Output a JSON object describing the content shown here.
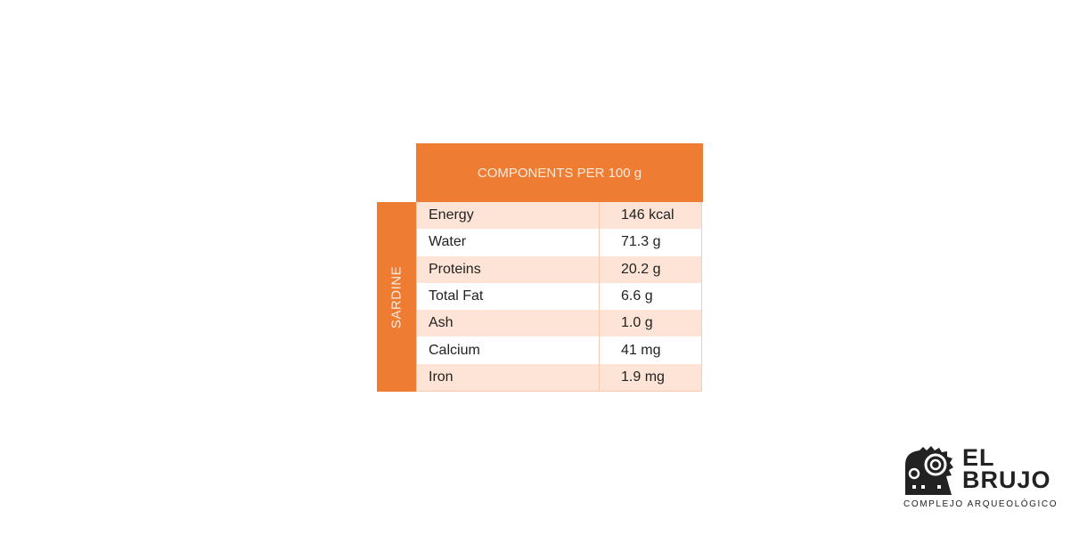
{
  "table": {
    "header": "COMPONENTS PER 100 g",
    "side_label": "SARDINE",
    "rows": [
      {
        "component": "Energy",
        "value": "146 kcal"
      },
      {
        "component": "Water",
        "value": "71.3 g"
      },
      {
        "component": "Proteins",
        "value": "20.2 g"
      },
      {
        "component": "Total Fat",
        "value": "6.6 g"
      },
      {
        "component": "Ash",
        "value": "1.0 g"
      },
      {
        "component": "Calcium",
        "value": "41 mg"
      },
      {
        "component": "Iron",
        "value": "1.9 mg"
      }
    ]
  },
  "logo": {
    "line1": "EL",
    "line2": "BRUJO",
    "subtitle": "COMPLEJO ARQUEOLÓGICO"
  },
  "colors": {
    "accent": "#ee7d33",
    "row_alt": "#fde4d6"
  }
}
